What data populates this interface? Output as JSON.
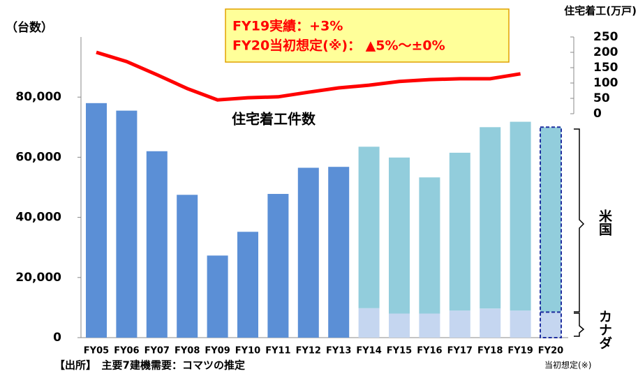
{
  "chart_data": {
    "type": "bar",
    "y_label": "（台数）",
    "y2_label": "住宅着工(万戸)",
    "annotation": [
      "FY19実績：+3%",
      "FY20当初想定(※)： ▲5%～±0%"
    ],
    "line_label": "住宅着工件数",
    "source": "【出所】　主要7建機需要：コマツの推定",
    "note": "当初想定(※)",
    "categories": [
      "FY05",
      "FY06",
      "FY07",
      "FY08",
      "FY09",
      "FY10",
      "FY11",
      "FY12",
      "FY13",
      "FY14",
      "FY15",
      "FY16",
      "FY17",
      "FY18",
      "FY19",
      "FY20"
    ],
    "series": [
      {
        "color": "#5b8fd6",
        "values": [
          78000,
          75500,
          62000,
          47500,
          27300,
          35200,
          47800,
          56500,
          56800,
          null,
          null,
          null,
          null,
          null,
          null,
          null
        ]
      },
      {
        "name": "カナダ",
        "color": "#c5d6f0",
        "stack": true,
        "values": [
          null,
          null,
          null,
          null,
          null,
          null,
          null,
          null,
          null,
          9800,
          8000,
          8000,
          9000,
          9700,
          9000,
          8500
        ]
      },
      {
        "name": "米国",
        "color": "#92cddc",
        "stack": true,
        "values": [
          null,
          null,
          null,
          null,
          null,
          null,
          null,
          null,
          null,
          53700,
          51900,
          45300,
          52500,
          60300,
          62800,
          61500
        ]
      },
      {
        "type": "line",
        "axis": "y2",
        "color": "#ff0000",
        "values": [
          200,
          170,
          127,
          82,
          45,
          52,
          55,
          70,
          84,
          93,
          105,
          111,
          114,
          114,
          130,
          null
        ]
      }
    ],
    "dashed": [
      15
    ],
    "ylim": [
      0,
      100000
    ],
    "yticks": [
      0,
      {
        "value": 20000,
        "label": "20,000"
      },
      {
        "value": 40000,
        "label": "40,000"
      },
      {
        "value": 60000,
        "label": "60,000"
      },
      {
        "value": 80000,
        "label": "80,000"
      }
    ],
    "y2lim": [
      0,
      250
    ],
    "y2ticks": [
      0,
      50,
      100,
      150,
      200,
      250
    ]
  }
}
